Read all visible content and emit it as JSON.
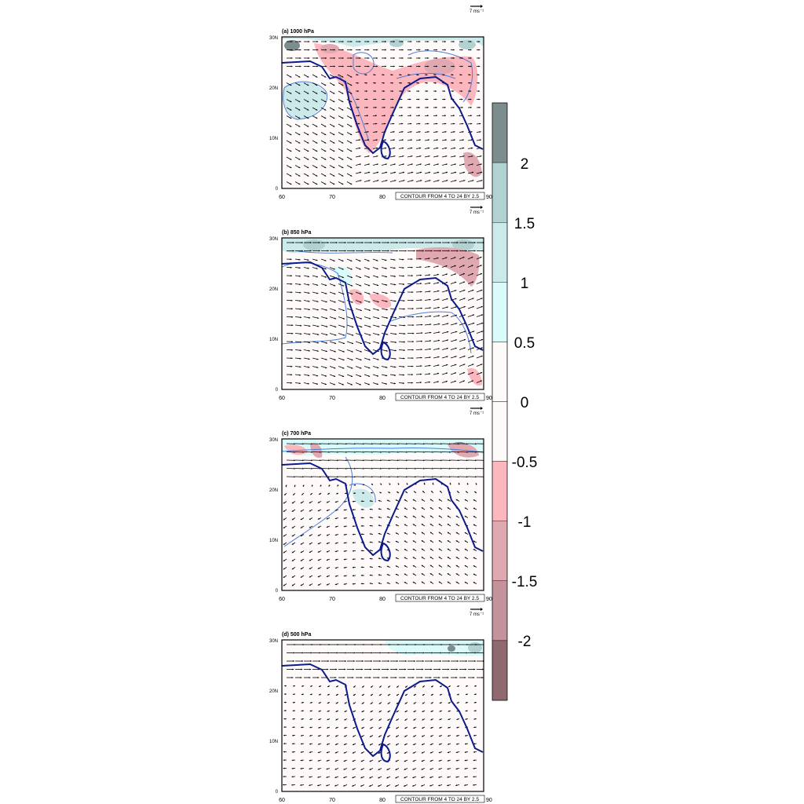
{
  "figure": {
    "reference_vector_label": "7 ms⁻¹",
    "contour_note": "CONTOUR FROM 4 TO 24 BY 2.5"
  },
  "colorbar": {
    "tick_labels": [
      "2",
      "1.5",
      "1",
      "0.5",
      "0",
      "-0.5",
      "-1",
      "-1.5",
      "-2"
    ],
    "bins": [
      {
        "range": "> 2",
        "color": "#7d8c8c"
      },
      {
        "range": "1.5 to 2",
        "color": "#b2d2d2"
      },
      {
        "range": "1 to 1.5",
        "color": "#cdeaea"
      },
      {
        "range": "0.5 to 1",
        "color": "#dbfbfb"
      },
      {
        "range": "0 to 0.5",
        "color": "#fffafa"
      },
      {
        "range": "-0.5 to 0",
        "color": "#fffafa"
      },
      {
        "range": "-1 to -0.5",
        "color": "#fcb6be"
      },
      {
        "range": "-1.5 to -1",
        "color": "#e0a8b1"
      },
      {
        "range": "-2 to -1.5",
        "color": "#c4929a"
      },
      {
        "range": "< -2",
        "color": "#8f6870"
      }
    ]
  },
  "axes": {
    "x_ticks": [
      "60",
      "70",
      "80",
      "90"
    ],
    "y_ticks": [
      "0",
      "10N",
      "20N",
      "30N"
    ],
    "xlim": [
      60,
      100
    ],
    "ylim": [
      0,
      30
    ]
  },
  "chart_data": [
    {
      "type": "heatmap",
      "title": "(a) 1000 hPa",
      "level_hPa": 1000,
      "xlim": [
        60,
        100
      ],
      "ylim": [
        0,
        30
      ],
      "overlays": [
        "wind vectors",
        "isotach contours",
        "coastline"
      ]
    },
    {
      "type": "heatmap",
      "title": "(b) 850 hPa",
      "level_hPa": 850,
      "xlim": [
        60,
        100
      ],
      "ylim": [
        0,
        30
      ],
      "overlays": [
        "wind vectors",
        "isotach contours",
        "coastline"
      ]
    },
    {
      "type": "heatmap",
      "title": "(c) 700 hPa",
      "level_hPa": 700,
      "xlim": [
        60,
        100
      ],
      "ylim": [
        0,
        30
      ],
      "overlays": [
        "wind vectors",
        "isotach contours",
        "coastline"
      ]
    },
    {
      "type": "heatmap",
      "title": "(d) 500 hPa",
      "level_hPa": 500,
      "xlim": [
        60,
        100
      ],
      "ylim": [
        0,
        30
      ],
      "overlays": [
        "wind vectors",
        "coastline"
      ]
    }
  ]
}
